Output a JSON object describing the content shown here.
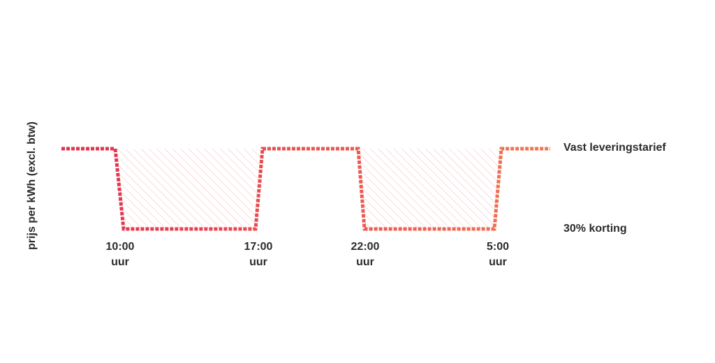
{
  "axis_label": "prijs per kWh (excl. btw)",
  "levels": {
    "high": "Vast leveringstarief",
    "low": "30% korting"
  },
  "times": [
    {
      "time": "10:00",
      "unit": "uur"
    },
    {
      "time": "17:00",
      "unit": "uur"
    },
    {
      "time": "22:00",
      "unit": "uur"
    },
    {
      "time": "5:00",
      "unit": "uur"
    }
  ]
}
